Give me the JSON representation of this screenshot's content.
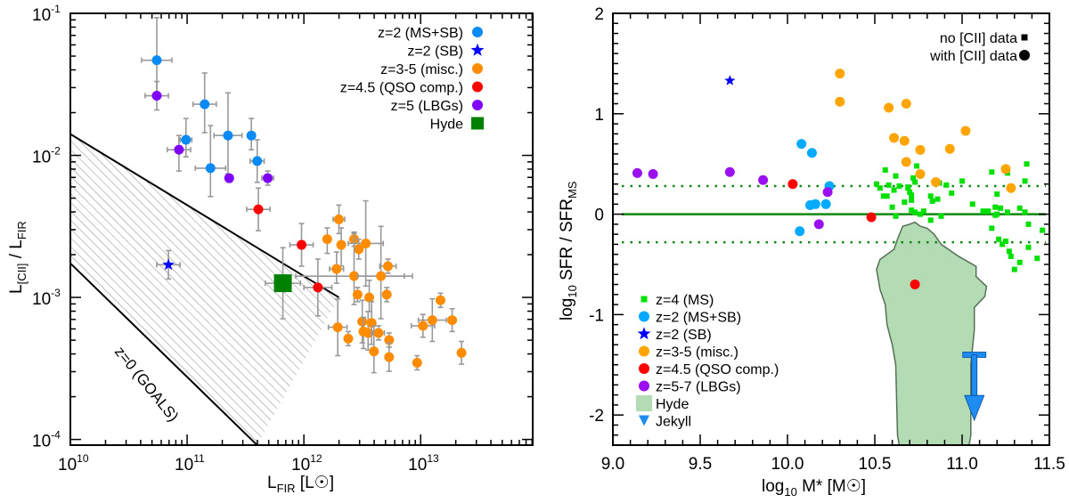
{
  "chart_data": [
    {
      "type": "scatter",
      "xscale": "log",
      "yscale": "log",
      "xlabel": "L_FIR [L☉]",
      "ylabel": "L_[CII] / L_FIR",
      "xlim_log10": [
        10,
        13.96
      ],
      "ylim_log10": [
        -4.04,
        -1
      ],
      "xticks": [
        {
          "v": 10,
          "label": "10",
          "exp": "10"
        },
        {
          "v": 11,
          "label": "10",
          "exp": "11"
        },
        {
          "v": 12,
          "label": "10",
          "exp": "12"
        },
        {
          "v": 13,
          "label": "10",
          "exp": "13"
        }
      ],
      "yticks": [
        {
          "v": -1,
          "label": "10",
          "exp": "-1"
        },
        {
          "v": -2,
          "label": "10",
          "exp": "-2"
        },
        {
          "v": -3,
          "label": "10",
          "exp": "-3"
        },
        {
          "v": -4,
          "label": "10",
          "exp": "-4"
        }
      ],
      "legend_position": "top-right",
      "legend": [
        {
          "label": "z=2 (MS+SB)",
          "marker": "circle",
          "color": "#0a8af5"
        },
        {
          "label": "z=2 (SB)",
          "marker": "star",
          "color": "#0000ff"
        },
        {
          "label": "z=3-5 (misc.)",
          "marker": "circle",
          "color": "#ff8c00"
        },
        {
          "label": "z=4.5 (QSO comp.)",
          "marker": "circle",
          "color": "#ff0000"
        },
        {
          "label": "z=5 (LBGs)",
          "marker": "circle",
          "color": "#8000ff"
        },
        {
          "label": "Hyde",
          "marker": "square",
          "color": "#008000"
        }
      ],
      "region": {
        "label": "z=0 (GOALS)",
        "upper_line": [
          [
            10,
            -1.85
          ],
          [
            12.3,
            -3.0
          ]
        ],
        "lower_line": [
          [
            10,
            -2.76
          ],
          [
            11.6,
            -4.04
          ]
        ]
      },
      "series": [
        {
          "name": "z=2 (MS+SB)",
          "color": "#0a8af5",
          "points": [
            [
              10.74,
              -1.33,
              0.13,
              0.25,
              0.3
            ],
            [
              11.15,
              -1.64,
              0.1,
              0.2,
              0.22
            ],
            [
              10.99,
              -1.89,
              0.05,
              0.12,
              0.15
            ],
            [
              11.35,
              -1.86,
              0.12,
              0.27,
              0.3
            ],
            [
              11.2,
              -2.09,
              0.13,
              0.2,
              0.3
            ],
            [
              11.6,
              -2.04,
              0.06,
              0.15,
              0.15
            ],
            [
              11.55,
              -1.86,
              0.03,
              0.1,
              0.12
            ]
          ]
        },
        {
          "name": "z=2 (SB)",
          "color": "#0000ff",
          "marker": "star",
          "points": [
            [
              10.84,
              -2.77,
              0.1,
              0.1,
              0.1
            ]
          ]
        },
        {
          "name": "z=3-5 (misc.)",
          "color": "#ff8c00",
          "points": [
            [
              12.3,
              -2.45,
              0.05,
              0.1,
              0.1
            ],
            [
              12.2,
              -2.59,
              0.0,
              0.1,
              0.08
            ],
            [
              12.32,
              -2.63,
              0.0,
              0.15,
              0.12
            ],
            [
              12.43,
              -2.59,
              0.03,
              0.05,
              0.05
            ],
            [
              12.53,
              -2.62,
              0.15,
              0.3,
              0.3
            ],
            [
              12.47,
              -2.66,
              0.0,
              0.07,
              0.07
            ],
            [
              12.28,
              -2.8,
              0.06,
              0.1,
              0.12
            ],
            [
              12.43,
              -2.85,
              0.5,
              0.2,
              0.3
            ],
            [
              12.66,
              -2.85,
              0.2,
              0.3,
              0.35
            ],
            [
              12.72,
              -2.78,
              0.07,
              0.05,
              0.05
            ],
            [
              12.46,
              -2.98,
              0.0,
              0.05,
              0.05
            ],
            [
              12.56,
              -3.0,
              0.0,
              0.1,
              0.12
            ],
            [
              12.71,
              -2.98,
              0.0,
              0.05,
              0.05
            ],
            [
              12.29,
              -3.21,
              0.08,
              0.2,
              0.2
            ],
            [
              12.38,
              -3.29,
              0.0,
              0.05,
              0.05
            ],
            [
              12.5,
              -3.17,
              0.0,
              0.15,
              0.15
            ],
            [
              12.51,
              -3.24,
              0.0,
              0.12,
              0.1
            ],
            [
              12.55,
              -3.25,
              0.0,
              0.12,
              0.15
            ],
            [
              12.58,
              -3.18,
              0.0,
              0.15,
              0.15
            ],
            [
              12.6,
              -3.38,
              0.0,
              0.15,
              0.18
            ],
            [
              12.64,
              -3.25,
              0.05,
              0.05,
              0.05
            ],
            [
              12.73,
              -3.3,
              0.0,
              0.05,
              0.05
            ],
            [
              12.73,
              -3.42,
              0.0,
              0.1,
              0.1
            ],
            [
              13.02,
              -3.2,
              0.1,
              0.08,
              0.08
            ],
            [
              13.1,
              -3.16,
              0.12,
              0.15,
              0.15
            ],
            [
              13.17,
              -3.02,
              0.03,
              0.05,
              0.05
            ],
            [
              13.27,
              -3.16,
              0.03,
              0.08,
              0.08
            ],
            [
              12.97,
              -3.46,
              0.0,
              0.05,
              0.05
            ],
            [
              13.35,
              -3.39,
              0.0,
              0.08,
              0.08
            ]
          ]
        },
        {
          "name": "z=4.5 (QSO comp.)",
          "color": "#ff0000",
          "points": [
            [
              11.61,
              -2.38,
              0.1,
              0.15,
              0.15
            ],
            [
              11.98,
              -2.63,
              0.1,
              0.15,
              0.15
            ],
            [
              12.12,
              -2.93,
              0.12,
              0.2,
              0.2
            ]
          ]
        },
        {
          "name": "z=5 (LBGs)",
          "color": "#8000ff",
          "points": [
            [
              10.74,
              -1.58,
              0.1,
              0.1,
              0.1
            ],
            [
              10.93,
              -1.96,
              0.1,
              0.15,
              0.1
            ],
            [
              11.36,
              -2.16,
              0.0,
              0.03,
              0.02
            ],
            [
              11.69,
              -2.16,
              0.05,
              0.05,
              0.05
            ]
          ]
        },
        {
          "name": "Hyde",
          "color": "#008000",
          "marker": "square",
          "points": [
            [
              11.82,
              -2.9,
              0.15,
              0.25,
              0.25
            ]
          ]
        }
      ]
    },
    {
      "type": "scatter",
      "xlabel": "log10 M* [M☉]",
      "ylabel": "log10 SFR / SFR_MS",
      "xlim": [
        9.0,
        11.5
      ],
      "ylim": [
        -2.3,
        2.0
      ],
      "xticks": [
        "9.0",
        "9.5",
        "10.0",
        "10.5",
        "11.0",
        "11.5"
      ],
      "yticks": [
        "-2",
        "-1",
        "0",
        "1",
        "2"
      ],
      "hlines": [
        {
          "y": 0,
          "style": "solid"
        },
        {
          "y": 0.28,
          "style": "dotted"
        },
        {
          "y": -0.28,
          "style": "dotted"
        }
      ],
      "marker_legend": [
        {
          "label": "no [CII] data",
          "marker": "square"
        },
        {
          "label": "with [CII] data",
          "marker": "circle"
        }
      ],
      "legend_position": "bottom-left",
      "legend": [
        {
          "label": "z=4 (MS)",
          "marker": "square",
          "color": "#00e000"
        },
        {
          "label": "z=2 (MS+SB)",
          "marker": "circle",
          "color": "#00aaff"
        },
        {
          "label": "z=2 (SB)",
          "marker": "star",
          "color": "#0000ff"
        },
        {
          "label": "z=3-5 (misc.)",
          "marker": "circle",
          "color": "#ffa500"
        },
        {
          "label": "z=4.5 (QSO comp.)",
          "marker": "circle",
          "color": "#ff0000"
        },
        {
          "label": "z=5-7 (LBGs)",
          "marker": "circle",
          "color": "#9b10f0"
        },
        {
          "label": "Hyde",
          "marker": "square",
          "color": "#b4dcb4"
        },
        {
          "label": "Jekyll",
          "marker": "triangle-down",
          "color": "#1e8cf0"
        }
      ],
      "series": [
        {
          "name": "z=4 (MS)",
          "color": "#00e000",
          "marker": "square",
          "points": [
            [
              10.74,
              0.48
            ],
            [
              10.56,
              0.44
            ],
            [
              10.62,
              0.38
            ],
            [
              10.58,
              0.29
            ],
            [
              10.64,
              0.28
            ],
            [
              10.69,
              0.27
            ],
            [
              10.51,
              0.3
            ],
            [
              10.53,
              0.26
            ],
            [
              10.72,
              0.36
            ],
            [
              10.73,
              0.32
            ],
            [
              10.55,
              0.18
            ],
            [
              10.57,
              0.18
            ],
            [
              10.61,
              0.24
            ],
            [
              10.7,
              0.22
            ],
            [
              10.69,
              0.26
            ],
            [
              10.71,
              0.19
            ],
            [
              10.67,
              0.12
            ],
            [
              10.71,
              0.14
            ],
            [
              10.83,
              0.13
            ],
            [
              10.82,
              0.18
            ],
            [
              10.6,
              0.07
            ],
            [
              10.71,
              0.04
            ],
            [
              10.73,
              0.02
            ],
            [
              10.78,
              0.03
            ],
            [
              10.86,
              0.15
            ],
            [
              10.87,
              0.31
            ],
            [
              10.91,
              0.29
            ],
            [
              10.94,
              0.21
            ],
            [
              11.0,
              0.33
            ],
            [
              11.06,
              0.1
            ],
            [
              10.62,
              -0.02
            ],
            [
              10.76,
              0.0
            ],
            [
              10.82,
              -0.06
            ],
            [
              10.88,
              -0.02
            ],
            [
              11.12,
              0.03
            ],
            [
              11.15,
              0.03
            ],
            [
              11.19,
              -0.01
            ],
            [
              11.17,
              -0.14
            ],
            [
              11.2,
              0.2
            ],
            [
              11.22,
              0.06
            ],
            [
              11.26,
              0.02
            ],
            [
              11.17,
              0.42
            ],
            [
              11.26,
              0.41
            ],
            [
              11.36,
              0.33
            ],
            [
              11.37,
              0.5
            ],
            [
              11.33,
              0.06
            ],
            [
              11.36,
              0.02
            ],
            [
              11.38,
              -0.1
            ],
            [
              11.19,
              0.07
            ],
            [
              11.2,
              0.0
            ],
            [
              11.21,
              -0.25
            ],
            [
              11.25,
              -0.27
            ],
            [
              11.23,
              -0.3
            ],
            [
              11.38,
              -0.33
            ],
            [
              11.27,
              -0.37
            ],
            [
              11.28,
              -0.42
            ],
            [
              11.3,
              -0.55
            ],
            [
              11.43,
              -0.44
            ],
            [
              11.46,
              -0.16
            ],
            [
              11.33,
              -0.48
            ]
          ]
        },
        {
          "name": "z=2 (MS+SB)",
          "color": "#00aaff",
          "marker": "circle",
          "points": [
            [
              10.08,
              0.7
            ],
            [
              10.14,
              0.61
            ],
            [
              10.13,
              0.09
            ],
            [
              10.16,
              0.1
            ],
            [
              10.22,
              0.1
            ],
            [
              10.24,
              0.28
            ],
            [
              10.07,
              -0.17
            ]
          ]
        },
        {
          "name": "z=2 (SB)",
          "color": "#0000ff",
          "marker": "star",
          "points": [
            [
              9.67,
              1.33
            ]
          ]
        },
        {
          "name": "z=3-5 (misc.)",
          "color": "#ffa500",
          "marker": "circle",
          "points": [
            [
              10.3,
              1.4
            ],
            [
              10.3,
              1.12
            ],
            [
              10.58,
              1.06
            ],
            [
              10.68,
              1.1
            ],
            [
              10.61,
              0.76
            ],
            [
              10.67,
              0.73
            ],
            [
              10.76,
              0.64
            ],
            [
              10.68,
              0.52
            ],
            [
              10.93,
              0.65
            ],
            [
              11.02,
              0.83
            ],
            [
              10.76,
              0.4
            ],
            [
              10.85,
              0.32
            ],
            [
              11.25,
              0.45
            ],
            [
              11.28,
              0.26
            ]
          ]
        },
        {
          "name": "z=4.5 (QSO comp.)",
          "color": "#ff0000",
          "marker": "circle",
          "points": [
            [
              10.03,
              0.3
            ],
            [
              10.48,
              -0.03
            ],
            [
              10.73,
              -0.7
            ]
          ]
        },
        {
          "name": "z=5-7 (LBGs)",
          "color": "#9b10f0",
          "marker": "circle",
          "points": [
            [
              9.14,
              0.41
            ],
            [
              9.23,
              0.4
            ],
            [
              9.67,
              0.42
            ],
            [
              9.86,
              0.34
            ],
            [
              10.23,
              0.22
            ],
            [
              10.18,
              -0.1
            ]
          ]
        },
        {
          "name": "Jekyll",
          "color": "#1e8cf0",
          "marker": "upper-limit",
          "points": [
            [
              11.07,
              -1.6
            ]
          ]
        }
      ],
      "hyde_region": "contour (light green) spanning log M* ≈ 10.6–11.15, SFR offset ≈ -2.3 to -0.05"
    }
  ]
}
